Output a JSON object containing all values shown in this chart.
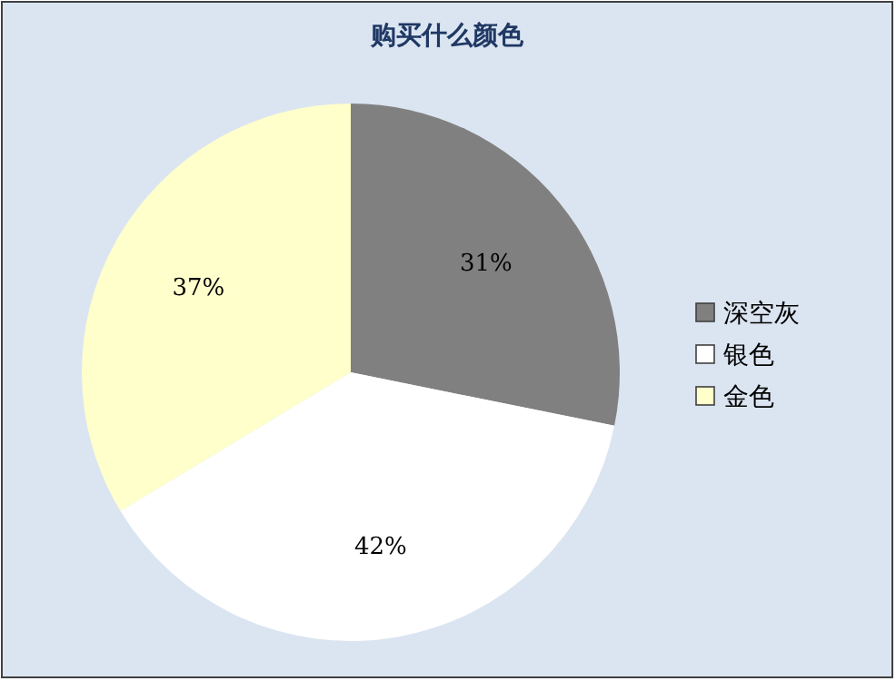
{
  "chart_data": {
    "type": "pie",
    "title": "购买什么颜色",
    "categories": [
      "深空灰",
      "银色",
      "金色"
    ],
    "values": [
      31,
      42,
      37
    ],
    "colors": [
      "#808080",
      "#ffffff",
      "#ffffcc"
    ],
    "value_labels": [
      "31%",
      "42%",
      "37%"
    ],
    "legend": "right"
  }
}
